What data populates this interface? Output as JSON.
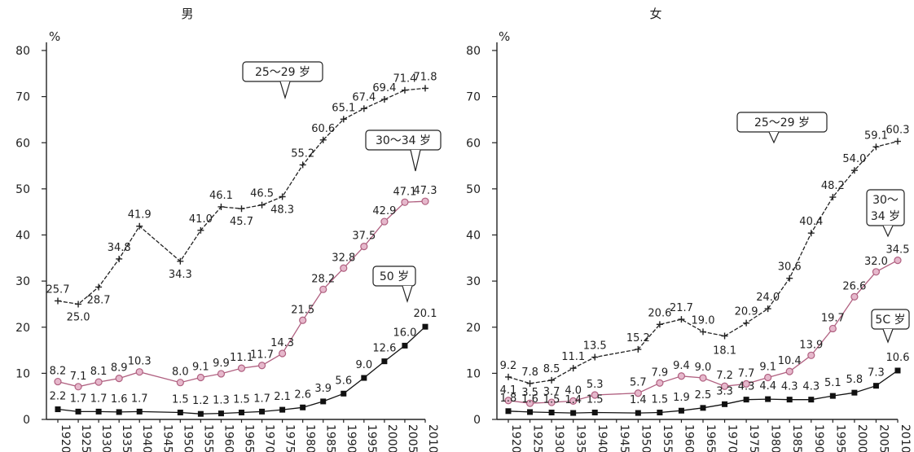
{
  "chart_data": [
    {
      "type": "line",
      "title": "男",
      "ylabel": "%",
      "ylim": [
        0,
        80
      ],
      "yticks": [
        0,
        10,
        20,
        30,
        40,
        50,
        60,
        70,
        80
      ],
      "x": [
        1920,
        1925,
        1930,
        1935,
        1940,
        1945,
        1950,
        1955,
        1960,
        1965,
        1970,
        1975,
        1980,
        1985,
        1990,
        1995,
        2000,
        2005,
        2010
      ],
      "x_tick_labels": [
        "1920",
        "1925",
        "1930",
        "1935",
        "1940",
        "1945",
        "1950",
        "1955",
        "1960",
        "1965",
        "1970",
        "1975",
        "1980",
        "1985",
        "1990",
        "1995",
        "2000",
        "2005",
        "2010"
      ],
      "series": [
        {
          "name": "25～29 岁",
          "marker": "plus",
          "color": "#222222",
          "points": [
            [
              1920,
              25.7
            ],
            [
              1925,
              25.0
            ],
            [
              1930,
              28.7
            ],
            [
              1935,
              34.8
            ],
            [
              1940,
              41.9
            ],
            [
              1950,
              34.3
            ],
            [
              1955,
              41.0
            ],
            [
              1960,
              46.1
            ],
            [
              1965,
              45.7
            ],
            [
              1970,
              46.5
            ],
            [
              1975,
              48.3
            ],
            [
              1980,
              55.2
            ],
            [
              1985,
              60.6
            ],
            [
              1990,
              65.1
            ],
            [
              1995,
              67.4
            ],
            [
              2000,
              69.4
            ],
            [
              2005,
              71.4
            ],
            [
              2010,
              71.8
            ]
          ],
          "labels": [
            "25.7",
            "25.0",
            "28.7",
            "34.8",
            "41.9",
            "34.3",
            "41.0",
            "46.1",
            "45.7",
            "46.5",
            "48.3",
            "55.2",
            "60.6",
            "65.1",
            "67.4",
            "69.4",
            "71.4",
            "71.8"
          ]
        },
        {
          "name": "30～34 岁",
          "marker": "circle",
          "color": "#b06080",
          "points": [
            [
              1920,
              8.2
            ],
            [
              1925,
              7.1
            ],
            [
              1930,
              8.1
            ],
            [
              1935,
              8.9
            ],
            [
              1940,
              10.3
            ],
            [
              1950,
              8.0
            ],
            [
              1955,
              9.1
            ],
            [
              1960,
              9.9
            ],
            [
              1965,
              11.1
            ],
            [
              1970,
              11.7
            ],
            [
              1975,
              14.3
            ],
            [
              1980,
              21.5
            ],
            [
              1985,
              28.2
            ],
            [
              1990,
              32.8
            ],
            [
              1995,
              37.5
            ],
            [
              2000,
              42.9
            ],
            [
              2005,
              47.1
            ],
            [
              2010,
              47.3
            ]
          ],
          "labels": [
            "8.2",
            "7.1",
            "8.1",
            "8.9",
            "10.3",
            "8.0",
            "9.1",
            "9.9",
            "11.1",
            "11.7",
            "14.3",
            "21.5",
            "28.2",
            "32.8",
            "37.5",
            "42.9",
            "47.1",
            "47.3"
          ]
        },
        {
          "name": "50 岁",
          "marker": "square",
          "color": "#111111",
          "points": [
            [
              1920,
              2.2
            ],
            [
              1925,
              1.7
            ],
            [
              1930,
              1.7
            ],
            [
              1935,
              1.6
            ],
            [
              1940,
              1.7
            ],
            [
              1950,
              1.5
            ],
            [
              1955,
              1.2
            ],
            [
              1960,
              1.3
            ],
            [
              1965,
              1.5
            ],
            [
              1970,
              1.7
            ],
            [
              1975,
              2.1
            ],
            [
              1980,
              2.6
            ],
            [
              1985,
              3.9
            ],
            [
              1990,
              5.6
            ],
            [
              1995,
              9.0
            ],
            [
              2000,
              12.6
            ],
            [
              2005,
              16.0
            ],
            [
              2010,
              20.1
            ]
          ],
          "labels": [
            "2.2",
            "1.7",
            "1.7",
            "1.6",
            "1.7",
            "1.5",
            "1.2",
            "1.3",
            "1.5",
            "1.7",
            "2.1",
            "2.6",
            "3.9",
            "5.6",
            "9.0",
            "12.6",
            "16.0",
            "20.1"
          ]
        }
      ]
    },
    {
      "type": "line",
      "title": "女",
      "ylabel": "%",
      "ylim": [
        0,
        80
      ],
      "yticks": [
        0,
        10,
        20,
        30,
        40,
        50,
        60,
        70,
        80
      ],
      "x": [
        1920,
        1925,
        1930,
        1935,
        1940,
        1945,
        1950,
        1955,
        1960,
        1965,
        1970,
        1975,
        1980,
        1985,
        1990,
        1995,
        2000,
        2005,
        2010
      ],
      "x_tick_labels": [
        "1920",
        "1925",
        "1930",
        "1935",
        "1940",
        "1945",
        "1950",
        "1955",
        "1960",
        "1965",
        "1970",
        "1975",
        "1980",
        "1985",
        "1990",
        "1995",
        "2000",
        "2005",
        "2010"
      ],
      "series": [
        {
          "name": "25～29 岁",
          "marker": "plus",
          "color": "#222222",
          "points": [
            [
              1920,
              9.2
            ],
            [
              1925,
              7.8
            ],
            [
              1930,
              8.5
            ],
            [
              1935,
              11.1
            ],
            [
              1940,
              13.5
            ],
            [
              1950,
              15.2
            ],
            [
              1955,
              20.6
            ],
            [
              1960,
              21.7
            ],
            [
              1965,
              19.0
            ],
            [
              1970,
              18.1
            ],
            [
              1975,
              20.9
            ],
            [
              1980,
              24.0
            ],
            [
              1985,
              30.6
            ],
            [
              1990,
              40.4
            ],
            [
              1995,
              48.2
            ],
            [
              2000,
              54.0
            ],
            [
              2005,
              59.1
            ],
            [
              2010,
              60.3
            ]
          ],
          "labels": [
            "9.2",
            "7.8",
            "8.5",
            "11.1",
            "13.5",
            "15.2",
            "20.6",
            "21.7",
            "19.0",
            "18.1",
            "20.9",
            "24.0",
            "30.6",
            "40.4",
            "48.2",
            "54.0",
            "59.1",
            "60.3"
          ]
        },
        {
          "name": "30～\n34 岁",
          "marker": "circle",
          "color": "#b06080",
          "points": [
            [
              1920,
              4.1
            ],
            [
              1925,
              3.5
            ],
            [
              1930,
              3.7
            ],
            [
              1935,
              4.0
            ],
            [
              1940,
              5.3
            ],
            [
              1950,
              5.7
            ],
            [
              1955,
              7.9
            ],
            [
              1960,
              9.4
            ],
            [
              1965,
              9.0
            ],
            [
              1970,
              7.2
            ],
            [
              1975,
              7.7
            ],
            [
              1980,
              9.1
            ],
            [
              1985,
              10.4
            ],
            [
              1990,
              13.9
            ],
            [
              1995,
              19.7
            ],
            [
              2000,
              26.6
            ],
            [
              2005,
              32.0
            ],
            [
              2010,
              34.5
            ]
          ],
          "labels": [
            "4.1",
            "3.5",
            "3.7",
            "4.0",
            "5.3",
            "5.7",
            "7.9",
            "9.4",
            "9.0",
            "7.2",
            "7.7",
            "9.1",
            "10.4",
            "13.9",
            "19.7",
            "26.6",
            "32.0",
            "34.5"
          ]
        },
        {
          "name": "5C 岁",
          "marker": "square",
          "color": "#111111",
          "points": [
            [
              1920,
              1.8
            ],
            [
              1925,
              1.6
            ],
            [
              1930,
              1.5
            ],
            [
              1935,
              1.4
            ],
            [
              1940,
              1.5
            ],
            [
              1950,
              1.4
            ],
            [
              1955,
              1.5
            ],
            [
              1960,
              1.9
            ],
            [
              1965,
              2.5
            ],
            [
              1970,
              3.3
            ],
            [
              1975,
              4.3
            ],
            [
              1980,
              4.4
            ],
            [
              1985,
              4.3
            ],
            [
              1990,
              4.3
            ],
            [
              1995,
              5.1
            ],
            [
              2000,
              5.8
            ],
            [
              2005,
              7.3
            ],
            [
              2010,
              10.6
            ]
          ],
          "labels": [
            "1.8",
            "1.6",
            "1.5",
            "1.4",
            "1.5",
            "1.4",
            "1.5",
            "1.9",
            "2.5",
            "3.3",
            "4.3",
            "4.4",
            "4.3",
            "4.3",
            "5.1",
            "5.8",
            "7.3",
            "10.6"
          ]
        }
      ]
    }
  ]
}
